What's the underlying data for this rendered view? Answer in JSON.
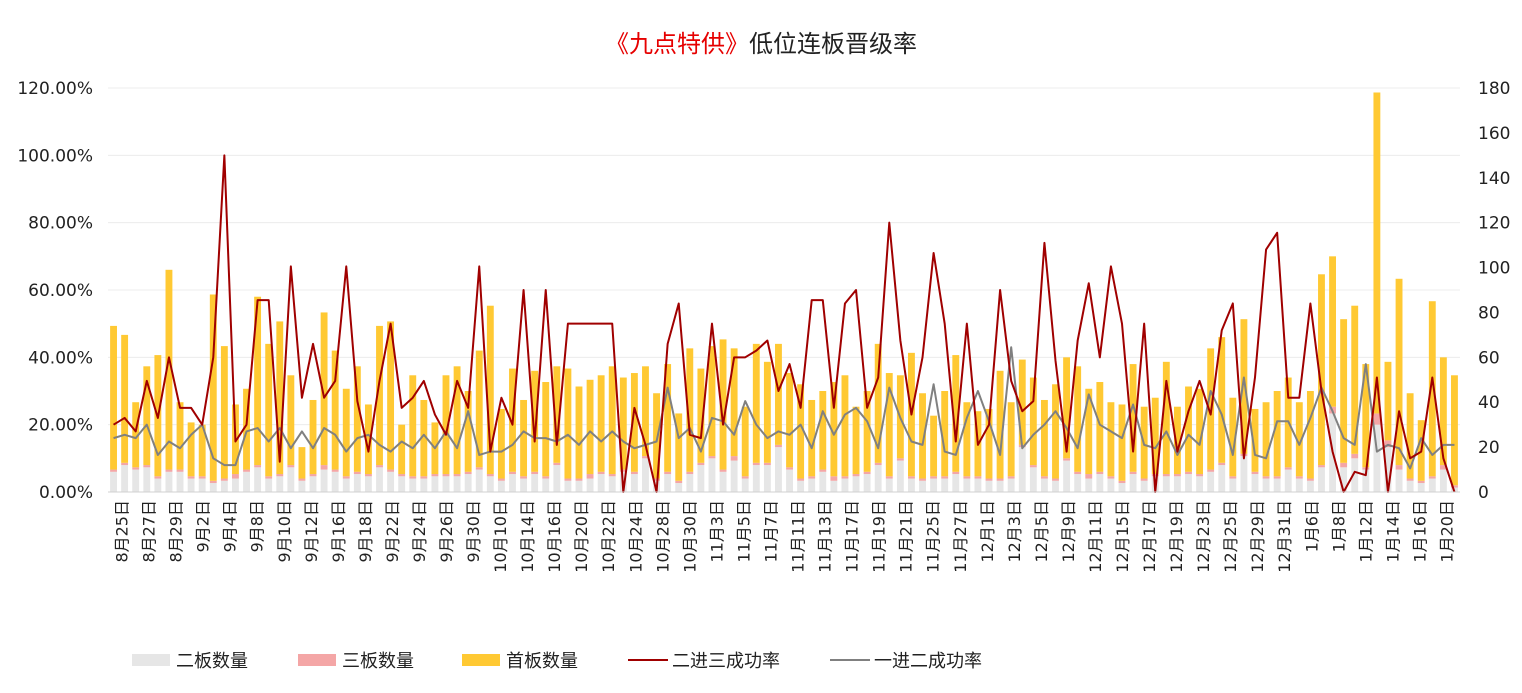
{
  "chart_data": {
    "type": "bar",
    "title": {
      "highlight": "《九点特供》",
      "rest": "低位连板晋级率"
    },
    "colors": {
      "second_board": "#e6e6e6",
      "third_board": "#f4a6a6",
      "first_board": "#ffc933",
      "second_to_third": "#a00000",
      "first_to_second": "#808080",
      "title_highlight": "#e60000",
      "title_rest": "#222222"
    },
    "left_axis": {
      "ylim": [
        0,
        1.2
      ],
      "ticks": [
        "0.00%",
        "20.00%",
        "40.00%",
        "60.00%",
        "80.00%",
        "100.00%",
        "120.00%"
      ]
    },
    "right_axis": {
      "ylim": [
        0,
        180
      ],
      "ticks": [
        "0",
        "20",
        "40",
        "60",
        "80",
        "100",
        "120",
        "140",
        "160",
        "180"
      ]
    },
    "x_tick_labels": [
      "8月25日",
      "8月27日",
      "8月29日",
      "9月2日",
      "9月4日",
      "9月8日",
      "9月10日",
      "9月12日",
      "9月16日",
      "9月18日",
      "9月22日",
      "9月24日",
      "9月26日",
      "9月30日",
      "10月10日",
      "10月14日",
      "10月16日",
      "10月20日",
      "10月22日",
      "10月24日",
      "10月28日",
      "10月30日",
      "11月3日",
      "11月5日",
      "11月7日",
      "11月11日",
      "11月13日",
      "11月17日",
      "11月19日",
      "11月21日",
      "11月25日",
      "11月27日",
      "12月1日",
      "12月3日",
      "12月5日",
      "12月9日",
      "12月11日",
      "12月15日",
      "12月17日",
      "12月19日",
      "12月23日",
      "12月25日",
      "12月29日",
      "12月31日",
      "1月6日",
      "1月8日",
      "1月12日",
      "1月14日",
      "1月16日",
      "1月20日"
    ],
    "legend": [
      "二板数量",
      "三板数量",
      "首板数量",
      "二进三成功率",
      "一进二成功率"
    ],
    "series": [
      {
        "name": "二板数量",
        "axis": "right",
        "kind": "stacked-bar",
        "values": [
          9,
          12,
          10,
          11,
          6,
          9,
          9,
          6,
          6,
          4,
          5,
          6,
          9,
          11,
          6,
          7,
          11,
          5,
          7,
          10,
          9,
          6,
          8,
          7,
          11,
          9,
          7,
          6,
          6,
          7,
          7,
          7,
          8,
          10,
          7,
          5,
          8,
          6,
          8,
          6,
          12,
          5,
          5,
          6,
          8,
          7,
          9,
          8,
          15,
          5,
          8,
          4,
          8,
          12,
          15,
          9,
          14,
          6,
          12,
          12,
          20,
          10,
          5,
          6,
          9,
          5,
          6,
          7,
          8,
          12,
          6,
          14,
          6,
          5,
          6,
          6,
          8,
          6,
          6,
          5,
          5,
          6,
          20,
          11,
          6,
          5,
          14,
          8,
          6,
          8,
          6,
          4,
          8,
          5,
          7,
          7,
          7,
          8,
          7,
          9,
          12,
          6,
          16,
          8,
          6,
          6,
          10,
          6,
          5,
          11,
          35,
          11,
          15,
          10,
          30,
          20,
          10,
          5,
          4,
          6,
          10,
          2
        ]
      },
      {
        "name": "三板数量",
        "axis": "right",
        "kind": "stacked-bar",
        "values": [
          1,
          1,
          1,
          1,
          1,
          1,
          1,
          1,
          1,
          1,
          1,
          2,
          1,
          1,
          1,
          1,
          1,
          1,
          1,
          2,
          1,
          1,
          1,
          1,
          1,
          1,
          1,
          1,
          1,
          1,
          1,
          1,
          1,
          1,
          1,
          1,
          1,
          1,
          1,
          1,
          1,
          1,
          1,
          2,
          1,
          1,
          1,
          1,
          1,
          1,
          1,
          1,
          1,
          1,
          1,
          1,
          2,
          1,
          1,
          1,
          1,
          1,
          1,
          1,
          1,
          2,
          1,
          1,
          1,
          1,
          1,
          1,
          1,
          1,
          1,
          1,
          1,
          1,
          1,
          1,
          1,
          1,
          1,
          1,
          1,
          1,
          1,
          1,
          2,
          1,
          1,
          1,
          1,
          1,
          1,
          1,
          1,
          1,
          1,
          1,
          1,
          1,
          1,
          1,
          1,
          1,
          1,
          1,
          1,
          1,
          3,
          2,
          2,
          1,
          5,
          3,
          2,
          1,
          1,
          1,
          2,
          1
        ]
      },
      {
        "name": "首板数量",
        "axis": "right",
        "kind": "stacked-bar",
        "values": [
          64,
          57,
          29,
          44,
          54,
          89,
          30,
          24,
          23,
          83,
          59,
          31,
          36,
          75,
          59,
          68,
          40,
          14,
          33,
          68,
          53,
          39,
          47,
          31,
          62,
          66,
          22,
          45,
          34,
          23,
          44,
          48,
          36,
          52,
          75,
          31,
          46,
          34,
          45,
          42,
          43,
          49,
          41,
          42,
          43,
          48,
          41,
          44,
          40,
          38,
          48,
          30,
          55,
          42,
          49,
          58,
          48,
          31,
          53,
          45,
          45,
          42,
          42,
          34,
          35,
          42,
          45,
          30,
          36,
          53,
          46,
          37,
          55,
          38,
          27,
          38,
          52,
          33,
          29,
          31,
          48,
          33,
          38,
          39,
          34,
          42,
          45,
          47,
          38,
          40,
          33,
          34,
          48,
          32,
          34,
          50,
          30,
          38,
          38,
          54,
          56,
          35,
          60,
          28,
          33,
          38,
          40,
          33,
          39,
          85,
          67,
          64,
          66,
          46,
          143,
          35,
          83,
          38,
          27,
          78,
          48,
          49
        ]
      },
      {
        "name": "二进三成功率",
        "axis": "left",
        "kind": "line",
        "values": [
          0.2,
          0.22,
          0.18,
          0.33,
          0.22,
          0.4,
          0.25,
          0.25,
          0.2,
          0.4,
          1.0,
          0.15,
          0.2,
          0.57,
          0.57,
          0.09,
          0.67,
          0.28,
          0.44,
          0.28,
          0.33,
          0.67,
          0.27,
          0.12,
          0.33,
          0.5,
          0.25,
          0.28,
          0.33,
          0.23,
          0.17,
          0.33,
          0.25,
          0.67,
          0.12,
          0.28,
          0.2,
          0.6,
          0.15,
          0.6,
          0.14,
          0.5,
          0.5,
          0.5,
          0.5,
          0.5,
          0.0,
          0.25,
          0.14,
          0.0,
          0.44,
          0.56,
          0.17,
          0.16,
          0.5,
          0.2,
          0.4,
          0.4,
          0.42,
          0.45,
          0.3,
          0.38,
          0.25,
          0.57,
          0.57,
          0.25,
          0.56,
          0.6,
          0.25,
          0.34,
          0.8,
          0.45,
          0.23,
          0.4,
          0.71,
          0.5,
          0.15,
          0.5,
          0.14,
          0.2,
          0.6,
          0.33,
          0.24,
          0.27,
          0.74,
          0.39,
          0.12,
          0.45,
          0.62,
          0.4,
          0.67,
          0.5,
          0.12,
          0.5,
          0.0,
          0.33,
          0.12,
          0.24,
          0.33,
          0.23,
          0.48,
          0.56,
          0.1,
          0.34,
          0.72,
          0.77,
          0.28,
          0.28,
          0.56,
          0.3,
          0.12,
          0.0,
          0.06,
          0.05,
          0.34,
          0.0,
          0.24,
          0.1,
          0.12,
          0.34,
          0.1,
          0.0
        ]
      },
      {
        "name": "一进二成功率",
        "axis": "left",
        "kind": "line",
        "values": [
          0.16,
          0.17,
          0.16,
          0.2,
          0.11,
          0.15,
          0.13,
          0.17,
          0.2,
          0.1,
          0.08,
          0.08,
          0.18,
          0.19,
          0.15,
          0.19,
          0.13,
          0.18,
          0.13,
          0.19,
          0.17,
          0.12,
          0.16,
          0.17,
          0.14,
          0.12,
          0.15,
          0.13,
          0.17,
          0.13,
          0.18,
          0.13,
          0.24,
          0.11,
          0.12,
          0.12,
          0.14,
          0.18,
          0.16,
          0.16,
          0.15,
          0.17,
          0.14,
          0.18,
          0.15,
          0.18,
          0.15,
          0.13,
          0.14,
          0.15,
          0.31,
          0.16,
          0.19,
          0.12,
          0.22,
          0.21,
          0.17,
          0.27,
          0.2,
          0.16,
          0.18,
          0.17,
          0.2,
          0.13,
          0.24,
          0.17,
          0.23,
          0.25,
          0.21,
          0.13,
          0.31,
          0.22,
          0.15,
          0.14,
          0.32,
          0.12,
          0.11,
          0.22,
          0.3,
          0.21,
          0.11,
          0.43,
          0.13,
          0.17,
          0.2,
          0.24,
          0.19,
          0.13,
          0.29,
          0.2,
          0.18,
          0.16,
          0.26,
          0.14,
          0.13,
          0.18,
          0.11,
          0.17,
          0.14,
          0.3,
          0.23,
          0.11,
          0.34,
          0.11,
          0.1,
          0.21,
          0.21,
          0.14,
          0.22,
          0.31,
          0.24,
          0.16,
          0.14,
          0.38,
          0.12,
          0.14,
          0.13,
          0.07,
          0.16,
          0.11,
          0.14,
          0.14
        ]
      }
    ]
  }
}
